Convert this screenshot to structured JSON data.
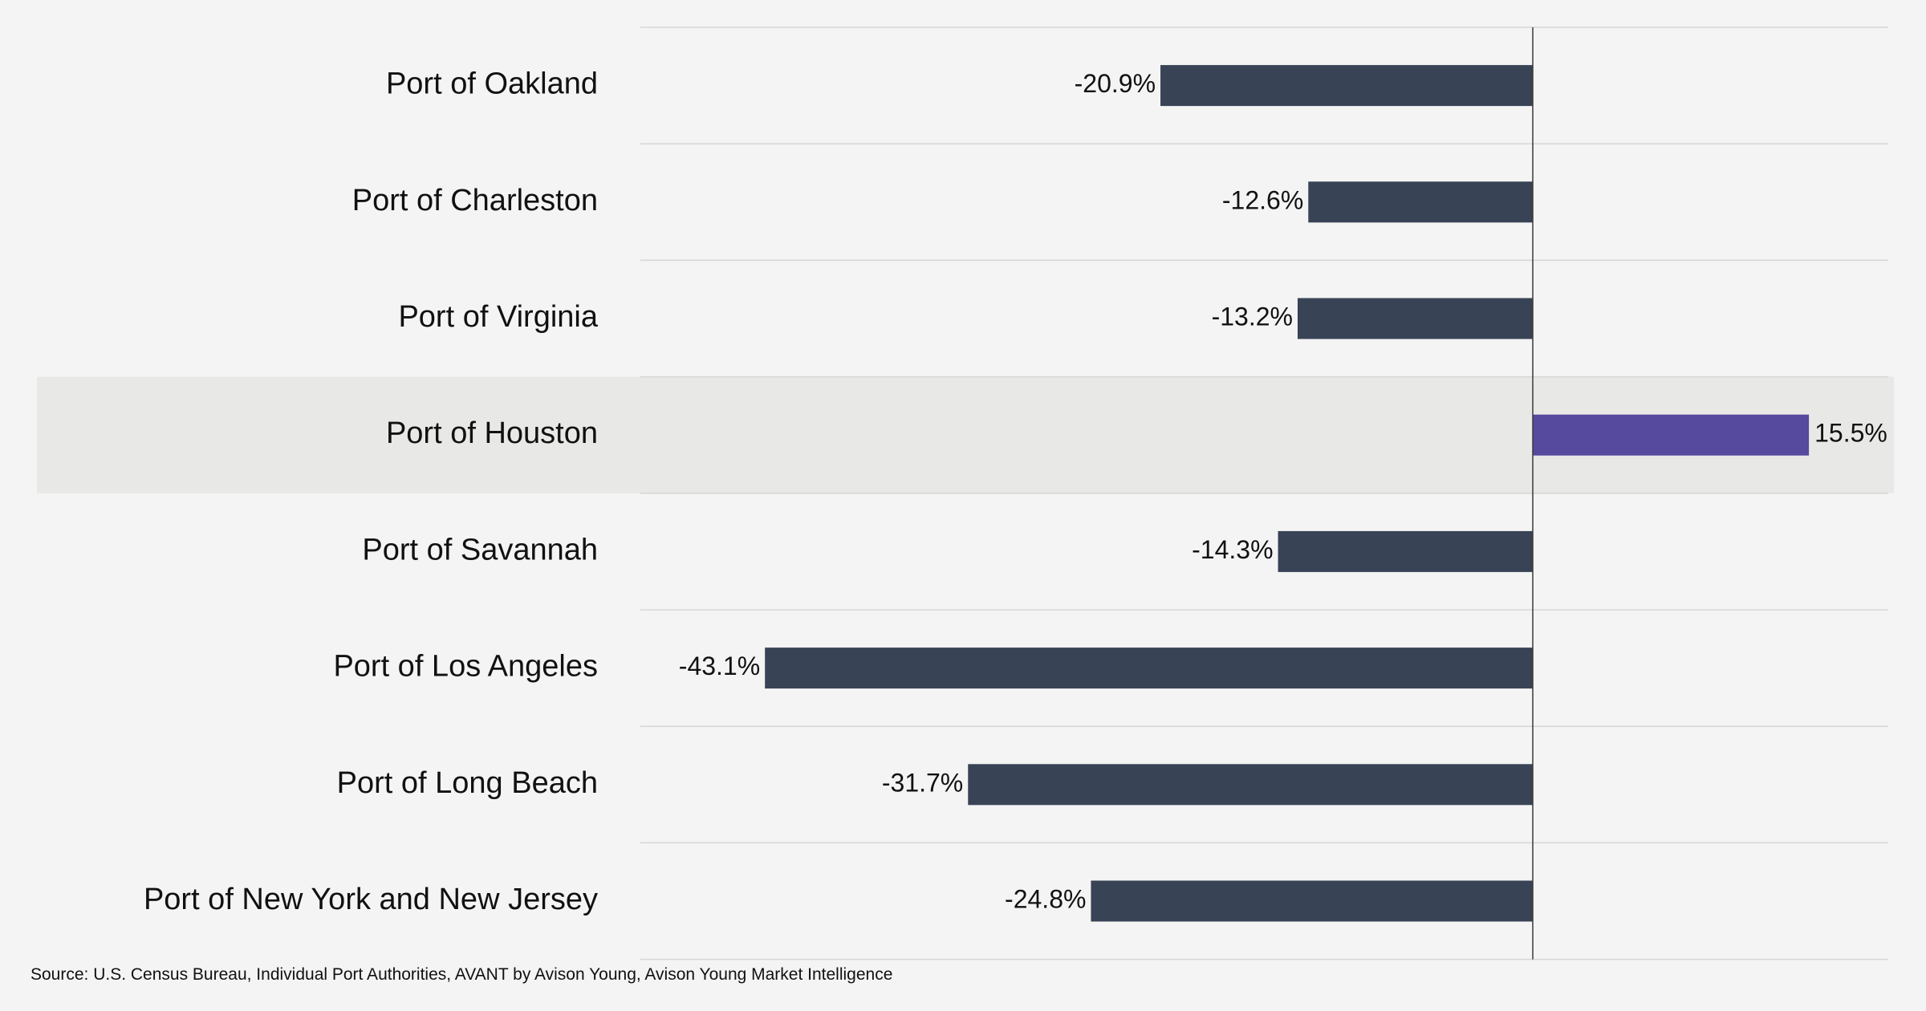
{
  "chart_data": {
    "type": "bar",
    "orientation": "horizontal",
    "title": "",
    "xlabel": "",
    "ylabel": "",
    "categories": [
      "Port of Oakland",
      "Port of Charleston",
      "Port of Virginia",
      "Port of Houston",
      "Port of Savannah",
      "Port of Los Angeles",
      "Port of Long Beach",
      "Port of New York and New Jersey"
    ],
    "values": [
      -20.9,
      -12.6,
      -13.2,
      15.5,
      -14.3,
      -43.1,
      -31.7,
      -24.8
    ],
    "value_labels": [
      "-20.9%",
      "-12.6%",
      "-13.2%",
      "15.5%",
      "-14.3%",
      "-43.1%",
      "-31.7%",
      "-24.8%"
    ],
    "highlighted_category": "Port of Houston",
    "xlim": [
      -50,
      20
    ],
    "grid": "horizontal row separators",
    "legend": "none",
    "colors": {
      "bar_default": "#394356",
      "bar_highlight": "#554a9e",
      "highlight_band": "#e8e8e6",
      "background": "#f4f4f4",
      "gridline": "#d6d6d6",
      "zero_line": "#3a3a3a"
    }
  },
  "footer": {
    "source": "Source: U.S. Census Bureau, Individual Port Authorities, AVANT by Avison Young, Avison Young Market Intelligence"
  }
}
